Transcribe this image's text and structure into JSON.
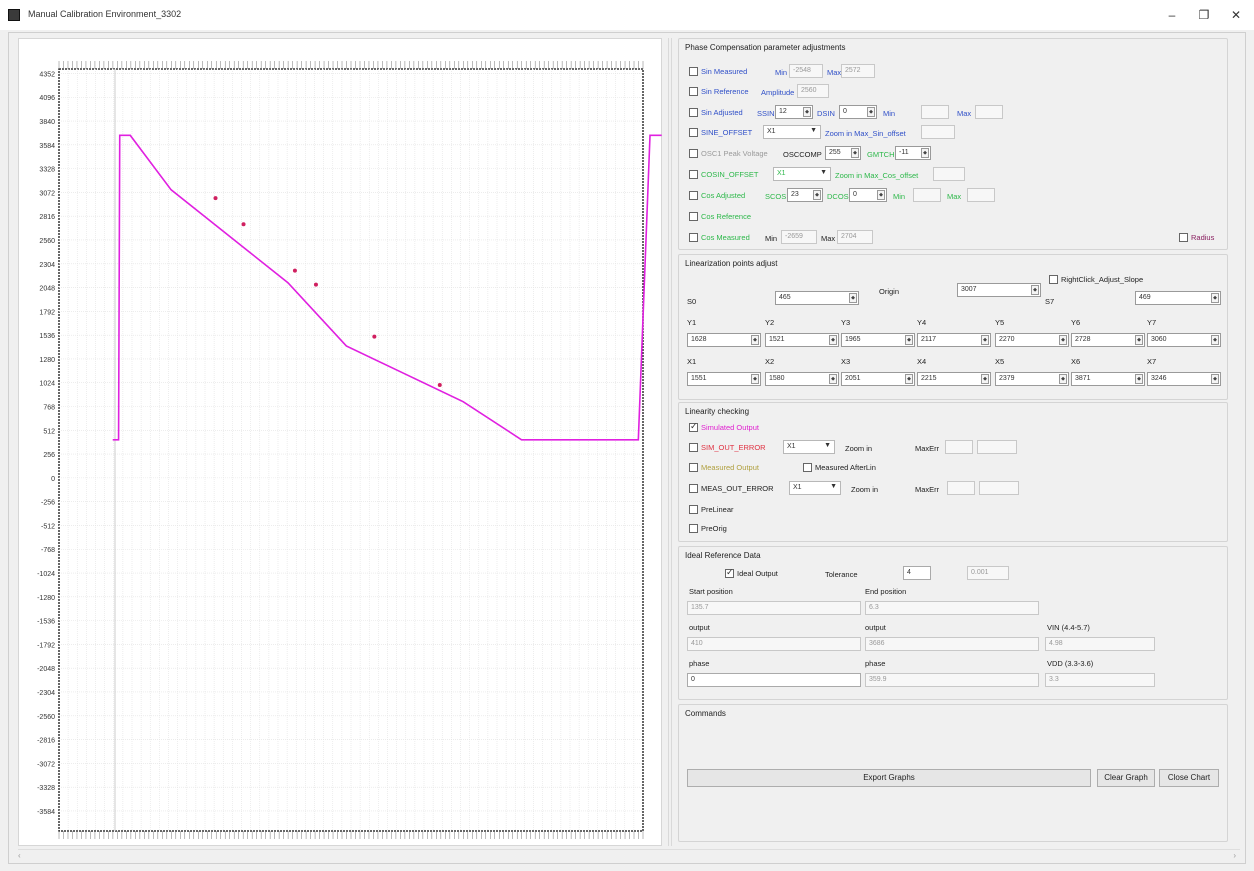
{
  "window": {
    "title": "Manual Calibration Environment_3302",
    "minimize": "–",
    "maximize": "❐",
    "close": "✕"
  },
  "chart_data": {
    "type": "line",
    "title": "",
    "xlabel": "",
    "ylabel": "",
    "y_ticks": [
      "4352",
      "4096",
      "3840",
      "3584",
      "3328",
      "3072",
      "2816",
      "2560",
      "2304",
      "2048",
      "1792",
      "1536",
      "1280",
      "1024",
      "768",
      "512",
      "256",
      "0",
      "-256",
      "-512",
      "-768",
      "-1024",
      "-1280",
      "-1536",
      "-1792",
      "-2048",
      "-2304",
      "-2560",
      "-2816",
      "-3072",
      "-3328",
      "-3584"
    ],
    "ylim": [
      -3800,
      4400
    ],
    "xlim": [
      0,
      1000
    ],
    "grid": true,
    "series": [
      {
        "color": "#e020e0",
        "x": [
          0,
          10,
          12,
          30,
          100,
          300,
          400,
          500,
          600,
          700,
          800,
          840,
          860,
          880,
          900,
          920,
          940
        ],
        "y": [
          410,
          410,
          3686,
          3686,
          3100,
          2100,
          1420,
          1120,
          820,
          410,
          410,
          410,
          410,
          410,
          410,
          3686,
          3686
        ]
      }
    ],
    "markers": [
      {
        "x": 176,
        "y": 3010
      },
      {
        "x": 224,
        "y": 2730
      },
      {
        "x": 312,
        "y": 2230
      },
      {
        "x": 348,
        "y": 2080
      },
      {
        "x": 448,
        "y": 1520
      },
      {
        "x": 560,
        "y": 1000
      }
    ],
    "baseline_color": "#cccccc"
  },
  "phase": {
    "title": "Phase Compensation parameter adjustments",
    "sin_measured": "Sin Measured",
    "min_label": "Min",
    "sin_min": "-2548",
    "max_label": "Max",
    "sin_max": "2572",
    "sin_reference": "Sin Reference",
    "amplitude_label": "Amplitude",
    "amplitude": "2560",
    "sin_adjusted": "Sin Adjusted",
    "ssin_label": "SSIN",
    "ssin": "12",
    "dsin_label": "DSIN",
    "dsin": "0",
    "min2": "Min",
    "max2": "Max",
    "sine_offset": "SINE_OFFSET",
    "sine_combo": "X1",
    "zoom_sine": "Zoom in  Max_Sin_offset",
    "osc1": "OSC1 Peak Voltage",
    "osccomp_label": "OSCCOMP",
    "osccomp": "255",
    "gmtch_label": "GMTCH",
    "gmtch": "-11",
    "cosin_offset": "COSIN_OFFSET",
    "cos_combo": "X1",
    "zoom_cos": "Zoom in  Max_Cos_offset",
    "cos_adjusted": "Cos Adjusted",
    "scos_label": "SCOS",
    "scos": "23",
    "dcos_label": "DCOS",
    "dcos": "0",
    "min3": "Min",
    "max3": "Max",
    "cos_reference": "Cos Reference",
    "cos_measured": "Cos Measured",
    "min4": "Min",
    "cos_min": "-2659",
    "max4": "Max",
    "cos_max": "2704",
    "radius": "Radius"
  },
  "lin": {
    "title": "Linearization points adjust",
    "right_click": "RightClick_Adjust_Slope",
    "s0_label": "S0",
    "s0": "465",
    "origin_label": "Origin",
    "origin": "3007",
    "s7_label": "S7",
    "s7": "469",
    "y_labels": [
      "Y1",
      "Y2",
      "Y3",
      "Y4",
      "Y5",
      "Y6",
      "Y7"
    ],
    "y_values": [
      "1628",
      "1521",
      "1965",
      "2117",
      "2270",
      "2728",
      "3060"
    ],
    "x_labels": [
      "X1",
      "X2",
      "X3",
      "X4",
      "X5",
      "X6",
      "X7"
    ],
    "x_values": [
      "1551",
      "1580",
      "2051",
      "2215",
      "2379",
      "3871",
      "3246"
    ]
  },
  "linearity": {
    "title": "Linearity checking",
    "simulated": "Simulated Output",
    "sim_err": "SIM_OUT_ERROR",
    "sim_combo": "X1",
    "zoom1": "Zoom in",
    "maxerr1": "MaxErr",
    "measured": "Measured Output",
    "measured_after": "Measured AfterLin",
    "meas_err": "MEAS_OUT_ERROR",
    "meas_combo": "X1",
    "zoom2": "Zoom in",
    "maxerr2": "MaxErr",
    "prelinear": "PreLinear",
    "preorig": "PreOrig"
  },
  "ideal": {
    "title": "Ideal Reference Data",
    "ideal_output": "Ideal Output",
    "tolerance_label": "Tolerance",
    "tolerance": "4",
    "tol_value": "0.001",
    "start_label": "Start position",
    "start_value": "135.7",
    "end_label": "End position",
    "end_value": "6.3",
    "output_label1": "output",
    "output1": "410",
    "output_label2": "output",
    "output2": "3686",
    "vin_label": "VIN (4.4-5.7)",
    "vin": "4.98",
    "phase_label1": "phase",
    "phase1": "0",
    "phase_label2": "phase",
    "phase2": "359.9",
    "vdd_label": "VDD (3.3-3.6)",
    "vdd": "3.3"
  },
  "commands": {
    "title": "Commands",
    "export": "Export Graphs",
    "clear": "Clear Graph",
    "close": "Close Chart"
  }
}
